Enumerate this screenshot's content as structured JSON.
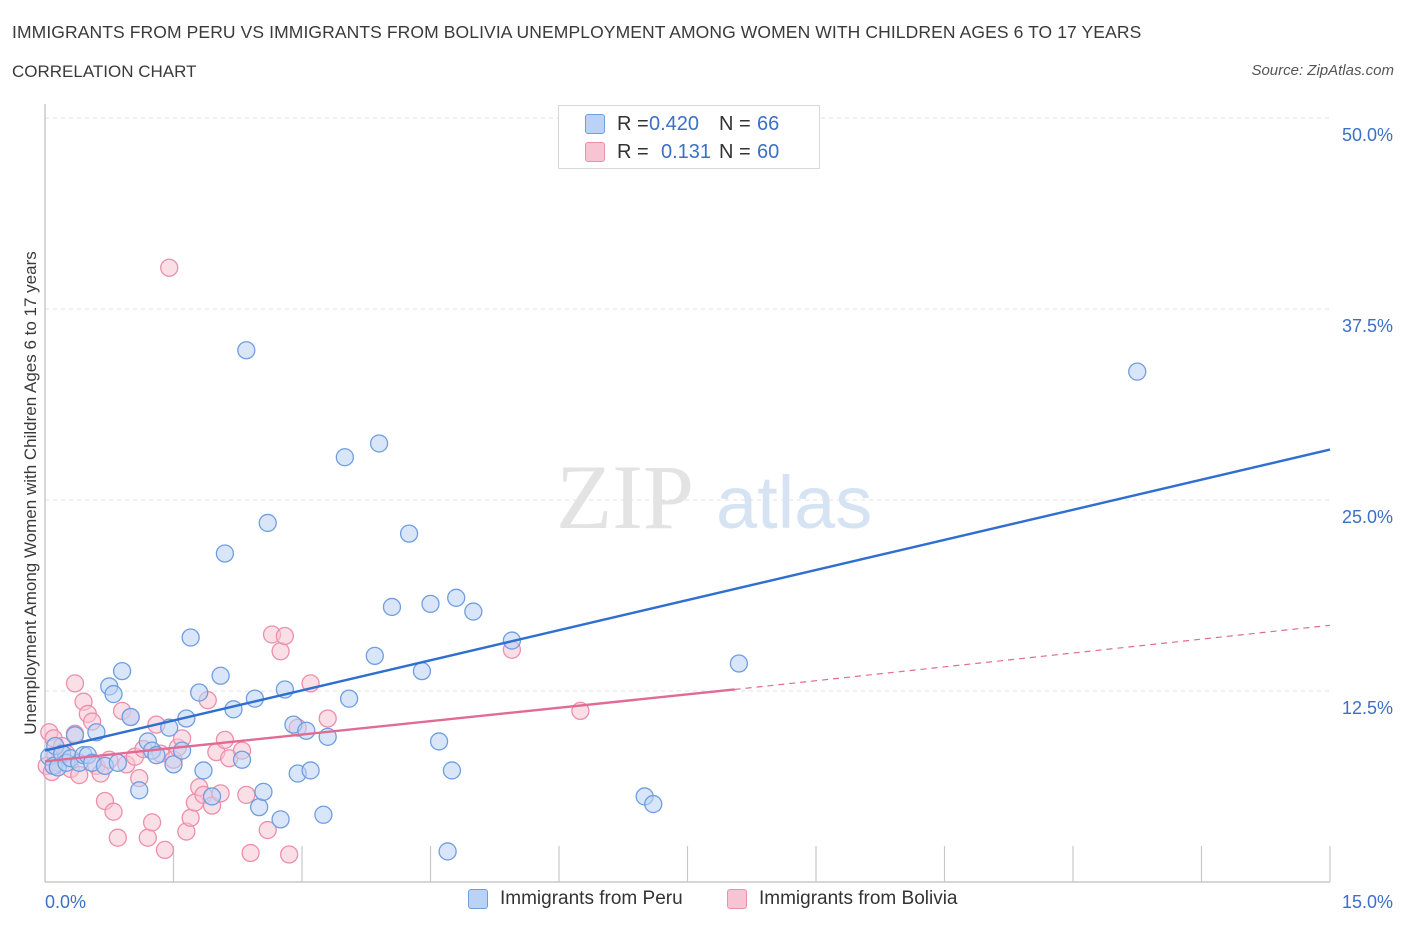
{
  "header": {
    "title": "IMMIGRANTS FROM PERU VS IMMIGRANTS FROM BOLIVIA UNEMPLOYMENT AMONG WOMEN WITH CHILDREN AGES 6 TO 17 YEARS",
    "subtitle": "CORRELATION CHART",
    "source": "Source: ZipAtlas.com"
  },
  "watermark": {
    "zip": "ZIP",
    "atlas": "atlas"
  },
  "colors": {
    "peru_fill": "#b9d2f5",
    "peru_stroke": "#6f9ee0",
    "peru_line": "#2f6fcf",
    "bolivia_fill": "#f8c4d3",
    "bolivia_stroke": "#ec8fab",
    "bolivia_line": "#e06b95",
    "tick_text": "#3b6fc9",
    "grid": "#e2e2e2"
  },
  "legend_top": {
    "rows": [
      {
        "r_label": "R =",
        "r_value": "0.420",
        "n_label": "N =",
        "n_value": "66"
      },
      {
        "r_label": "R =",
        "r_value": "0.131",
        "n_label": "N =",
        "n_value": "60"
      }
    ]
  },
  "legend_bottom": {
    "items": [
      "Immigrants from Peru",
      "Immigrants from Bolivia"
    ]
  },
  "chart_data": {
    "type": "scatter",
    "title": "IMMIGRANTS FROM PERU VS IMMIGRANTS FROM BOLIVIA UNEMPLOYMENT AMONG WOMEN WITH CHILDREN AGES 6 TO 17 YEARS",
    "subtitle": "CORRELATION CHART",
    "xlabel": "",
    "ylabel": "Unemployment Among Women with Children Ages 6 to 17 years",
    "xlim": [
      0,
      15
    ],
    "ylim": [
      0,
      50
    ],
    "x_tick_labels": [
      "0.0%",
      "15.0%"
    ],
    "y_ticks": [
      12.5,
      25,
      37.5,
      50
    ],
    "y_tick_labels": [
      "12.5%",
      "25.0%",
      "37.5%",
      "50.0%"
    ],
    "grid": true,
    "legend_position": "bottom-center",
    "series": [
      {
        "name": "Immigrants from Peru",
        "r": 0.42,
        "n": 66,
        "trend": {
          "x": [
            0.0,
            15.0
          ],
          "y": [
            8.6,
            28.3
          ]
        },
        "points": [
          [
            0.05,
            8.2
          ],
          [
            0.1,
            7.6
          ],
          [
            0.12,
            8.9
          ],
          [
            0.15,
            7.5
          ],
          [
            0.2,
            8.4
          ],
          [
            0.25,
            7.8
          ],
          [
            0.3,
            8.1
          ],
          [
            0.35,
            9.6
          ],
          [
            0.4,
            7.8
          ],
          [
            0.45,
            8.3
          ],
          [
            0.5,
            8.3
          ],
          [
            0.55,
            7.8
          ],
          [
            0.6,
            9.8
          ],
          [
            0.7,
            7.6
          ],
          [
            0.75,
            12.8
          ],
          [
            0.8,
            12.3
          ],
          [
            0.85,
            7.8
          ],
          [
            0.9,
            13.8
          ],
          [
            1.0,
            10.8
          ],
          [
            1.1,
            6.0
          ],
          [
            1.2,
            9.2
          ],
          [
            1.25,
            8.6
          ],
          [
            1.3,
            8.3
          ],
          [
            1.45,
            10.1
          ],
          [
            1.5,
            7.7
          ],
          [
            1.6,
            8.6
          ],
          [
            1.65,
            10.7
          ],
          [
            1.7,
            16.0
          ],
          [
            1.8,
            12.4
          ],
          [
            1.85,
            7.3
          ],
          [
            1.95,
            5.6
          ],
          [
            2.05,
            13.5
          ],
          [
            2.1,
            21.5
          ],
          [
            2.2,
            11.3
          ],
          [
            2.3,
            8.0
          ],
          [
            2.35,
            34.8
          ],
          [
            2.45,
            12.0
          ],
          [
            2.5,
            4.9
          ],
          [
            2.55,
            5.9
          ],
          [
            2.6,
            23.5
          ],
          [
            2.75,
            4.1
          ],
          [
            2.8,
            12.6
          ],
          [
            2.9,
            10.3
          ],
          [
            2.95,
            7.1
          ],
          [
            3.05,
            9.9
          ],
          [
            3.1,
            7.3
          ],
          [
            3.25,
            4.4
          ],
          [
            3.3,
            9.5
          ],
          [
            3.5,
            27.8
          ],
          [
            3.55,
            12.0
          ],
          [
            3.85,
            14.8
          ],
          [
            3.9,
            28.7
          ],
          [
            4.05,
            18.0
          ],
          [
            4.25,
            22.8
          ],
          [
            4.4,
            13.8
          ],
          [
            4.5,
            18.2
          ],
          [
            4.6,
            9.2
          ],
          [
            4.7,
            2.0
          ],
          [
            4.75,
            7.3
          ],
          [
            4.8,
            18.6
          ],
          [
            5.0,
            17.7
          ],
          [
            5.45,
            15.8
          ],
          [
            7.0,
            5.6
          ],
          [
            7.1,
            5.1
          ],
          [
            8.1,
            14.3
          ],
          [
            12.75,
            33.4
          ]
        ]
      },
      {
        "name": "Immigrants from Bolivia",
        "r": 0.131,
        "n": 60,
        "trend": {
          "x": [
            0.0,
            8.05
          ],
          "y": [
            7.9,
            12.6
          ]
        },
        "trend_extension": {
          "x": [
            8.05,
            15.0
          ],
          "y": [
            12.6,
            16.8
          ]
        },
        "points": [
          [
            0.02,
            7.6
          ],
          [
            0.05,
            9.8
          ],
          [
            0.08,
            7.2
          ],
          [
            0.1,
            9.4
          ],
          [
            0.12,
            8.3
          ],
          [
            0.15,
            7.8
          ],
          [
            0.2,
            8.9
          ],
          [
            0.25,
            8.4
          ],
          [
            0.3,
            7.4
          ],
          [
            0.35,
            9.7
          ],
          [
            0.35,
            13.0
          ],
          [
            0.4,
            7.0
          ],
          [
            0.45,
            11.8
          ],
          [
            0.5,
            11.0
          ],
          [
            0.55,
            10.5
          ],
          [
            0.6,
            7.6
          ],
          [
            0.65,
            7.1
          ],
          [
            0.7,
            5.3
          ],
          [
            0.75,
            8.0
          ],
          [
            0.8,
            4.6
          ],
          [
            0.85,
            2.9
          ],
          [
            0.9,
            11.2
          ],
          [
            0.95,
            7.7
          ],
          [
            1.0,
            10.8
          ],
          [
            1.05,
            8.2
          ],
          [
            1.1,
            6.8
          ],
          [
            1.15,
            8.7
          ],
          [
            1.2,
            2.9
          ],
          [
            1.25,
            3.9
          ],
          [
            1.3,
            10.3
          ],
          [
            1.35,
            8.4
          ],
          [
            1.4,
            2.1
          ],
          [
            1.45,
            40.2
          ],
          [
            1.5,
            8.0
          ],
          [
            1.55,
            8.8
          ],
          [
            1.6,
            9.4
          ],
          [
            1.65,
            3.3
          ],
          [
            1.7,
            4.2
          ],
          [
            1.75,
            5.2
          ],
          [
            1.8,
            6.2
          ],
          [
            1.85,
            5.7
          ],
          [
            1.9,
            11.9
          ],
          [
            1.95,
            5.0
          ],
          [
            2.0,
            8.5
          ],
          [
            2.05,
            5.8
          ],
          [
            2.1,
            9.3
          ],
          [
            2.15,
            8.1
          ],
          [
            2.3,
            8.6
          ],
          [
            2.35,
            5.7
          ],
          [
            2.4,
            1.9
          ],
          [
            2.6,
            3.4
          ],
          [
            2.65,
            16.2
          ],
          [
            2.75,
            15.1
          ],
          [
            2.8,
            16.1
          ],
          [
            2.85,
            1.8
          ],
          [
            2.95,
            10.1
          ],
          [
            3.1,
            13.0
          ],
          [
            3.3,
            10.7
          ],
          [
            5.45,
            15.2
          ],
          [
            6.25,
            11.2
          ]
        ]
      }
    ]
  }
}
